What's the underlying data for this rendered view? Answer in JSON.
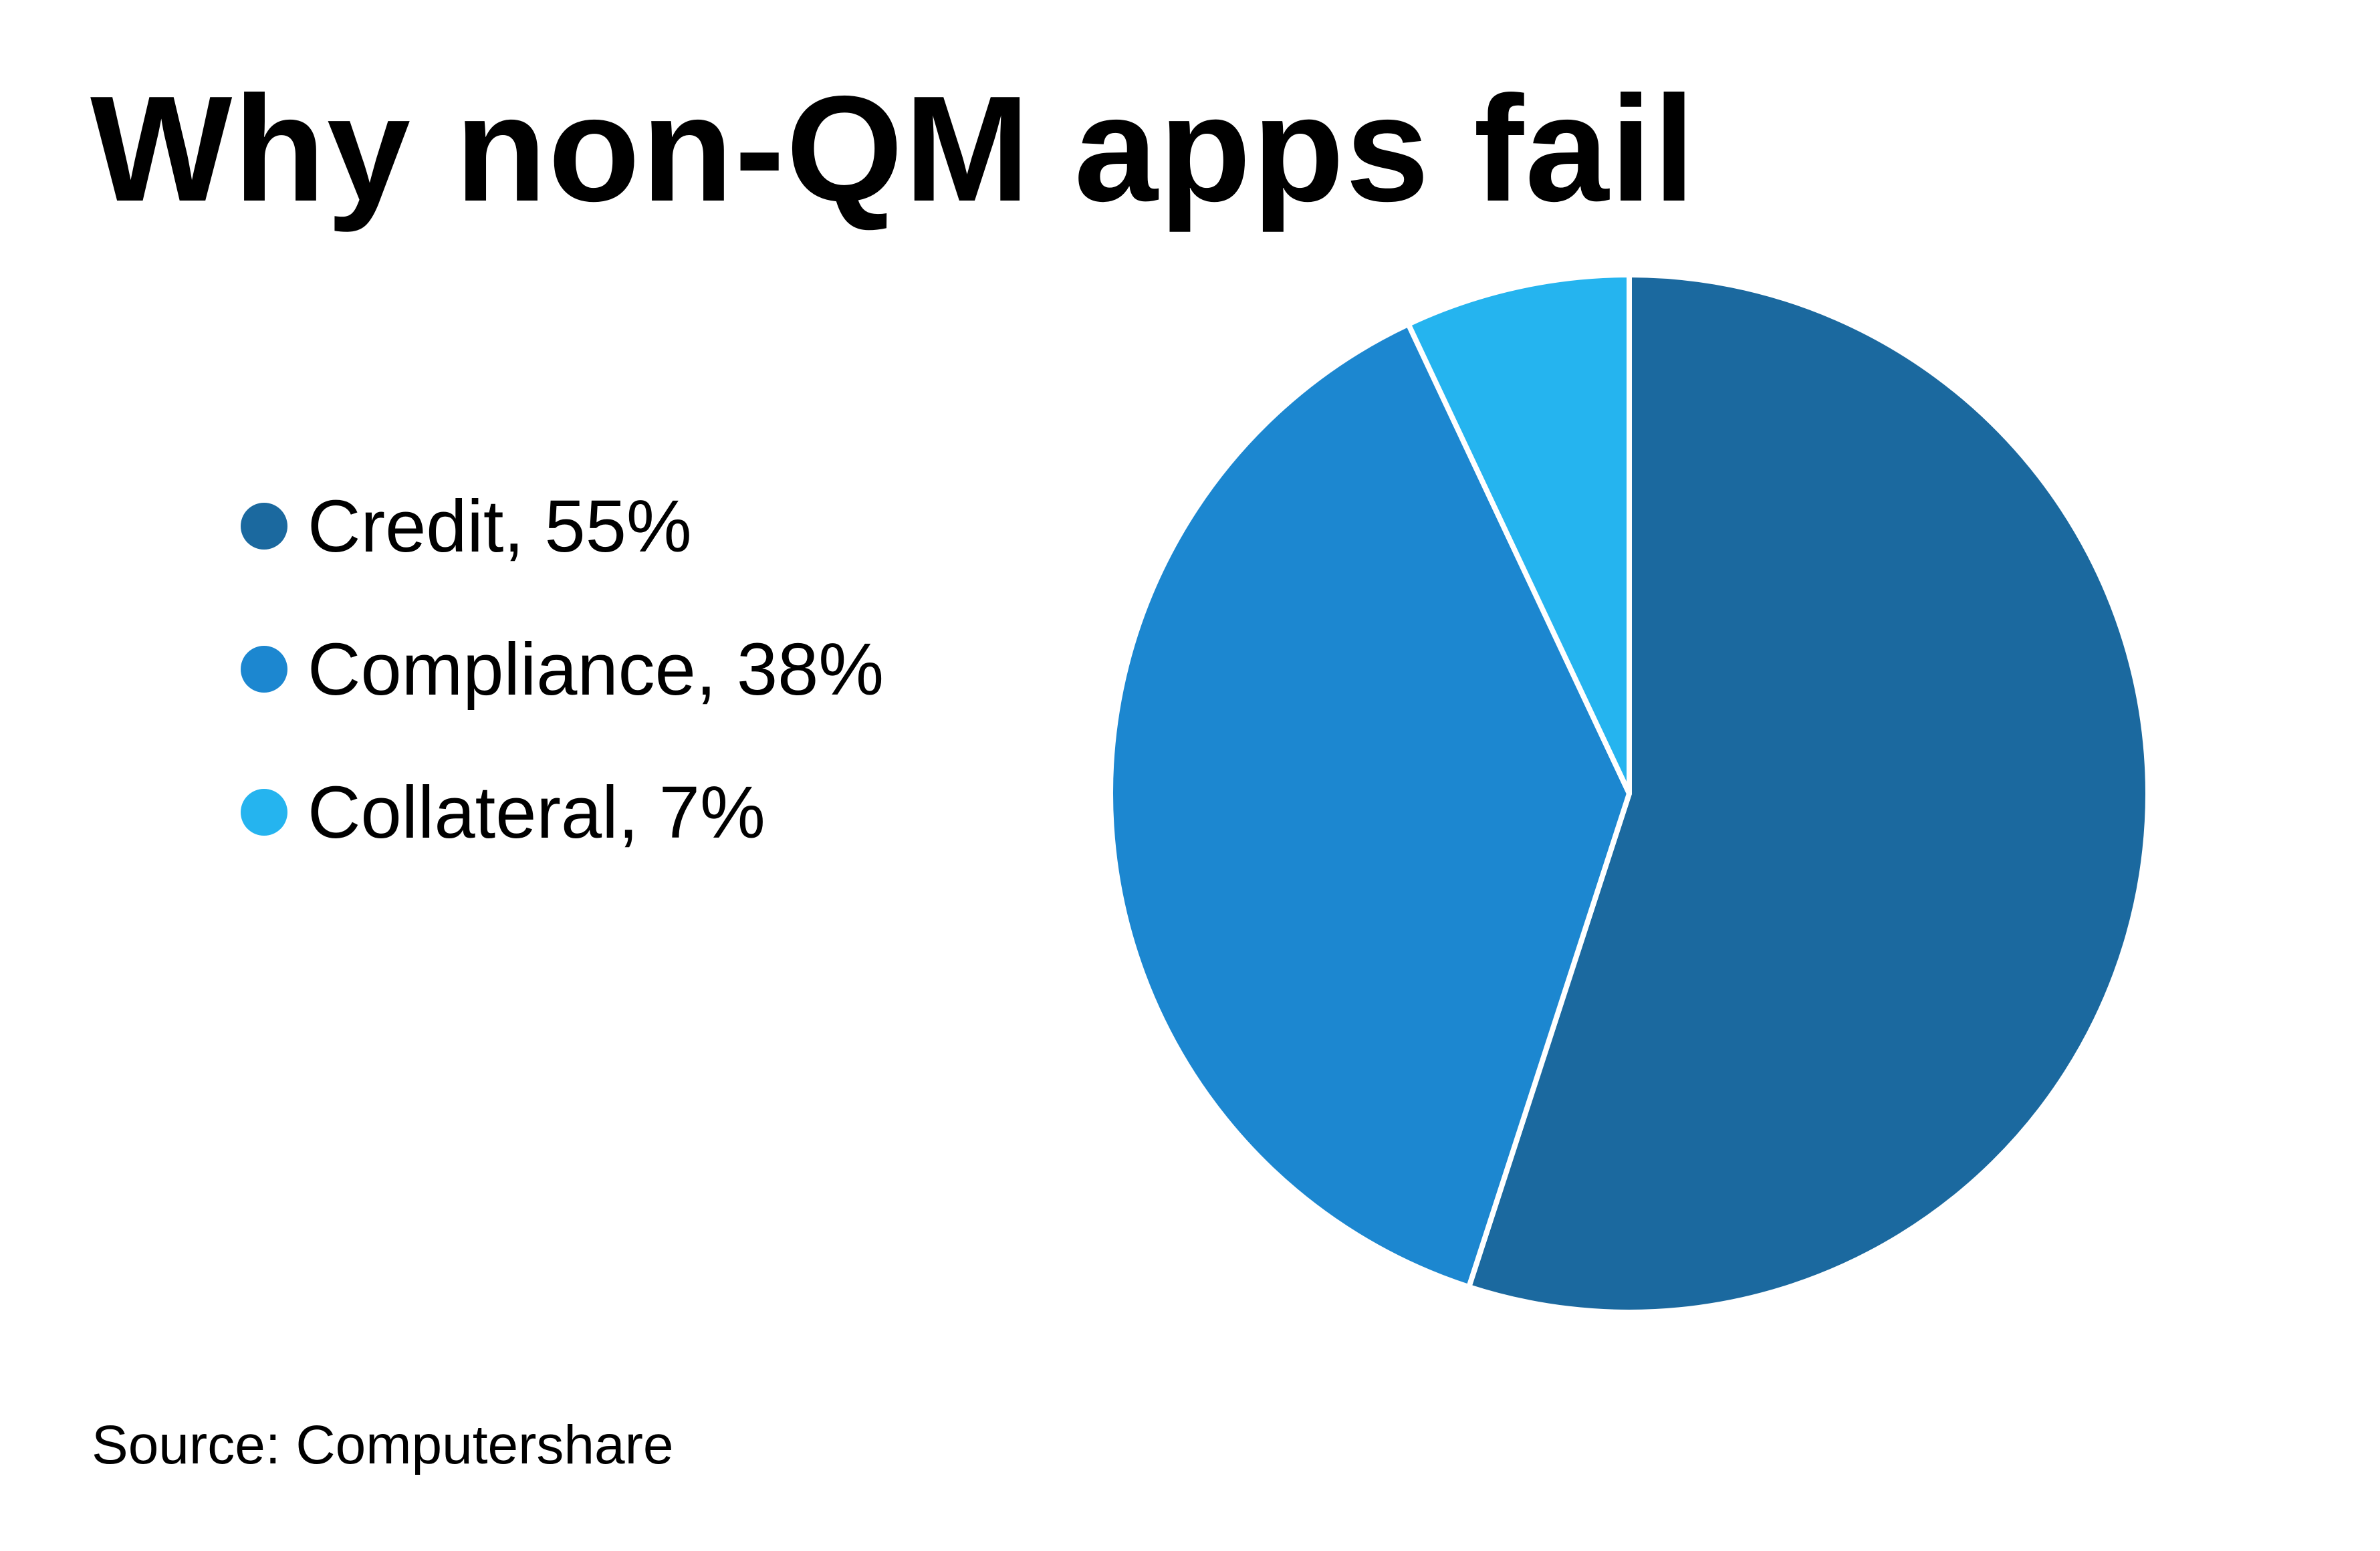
{
  "chart_data": {
    "type": "pie",
    "title": "Why non-QM apps fail",
    "categories": [
      "Credit",
      "Compliance",
      "Collateral"
    ],
    "values": [
      55,
      38,
      7
    ],
    "labels": [
      "Credit, 55%",
      "Compliance, 38%",
      "Collateral, 7%"
    ],
    "colors": [
      "#1b699f",
      "#1c87d0",
      "#25b4ef"
    ],
    "legend_position": "left",
    "start_angle": "top, clockwise",
    "source": "Source: Computershare"
  }
}
